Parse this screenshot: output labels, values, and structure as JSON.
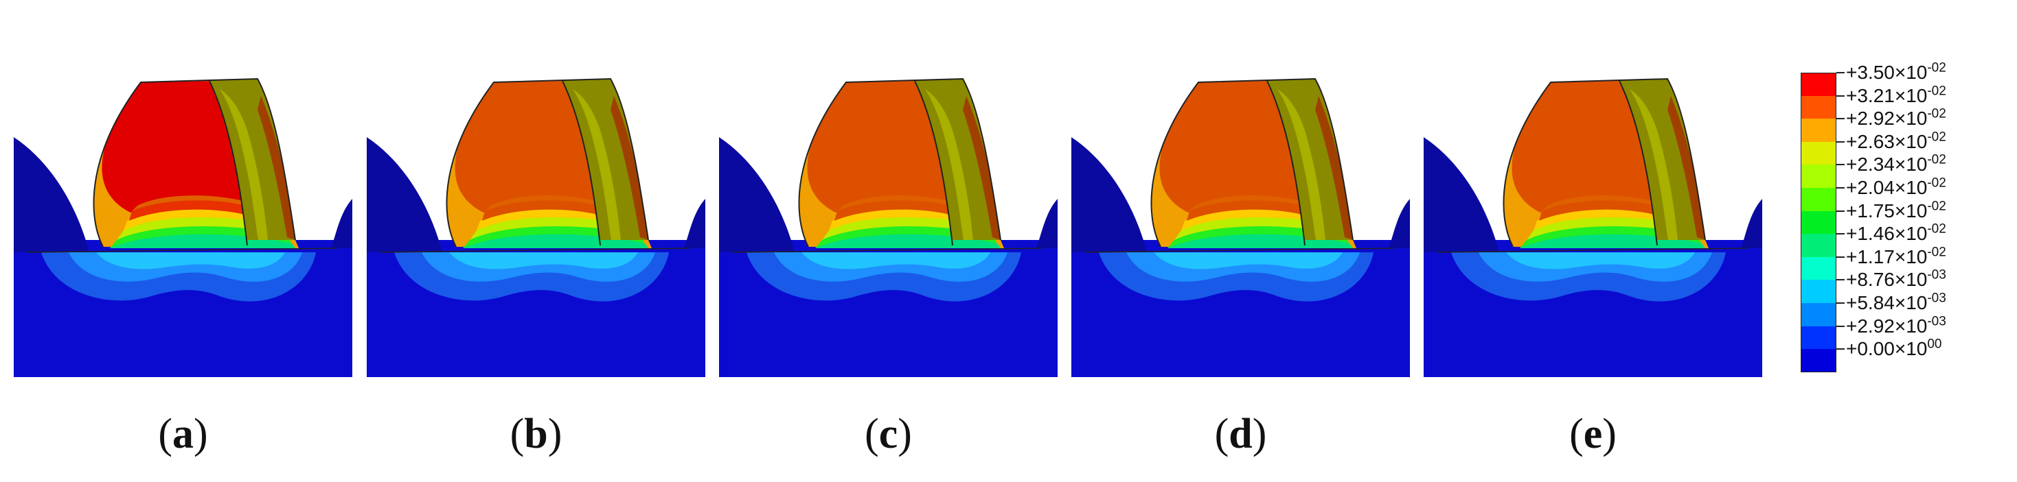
{
  "panels": [
    {
      "caption": "a",
      "tip_colors": [
        "#e00000",
        "#e00000",
        "#e83000",
        "#e06000"
      ]
    },
    {
      "caption": "b",
      "tip_colors": [
        "#dc5000",
        "#dc5000",
        "#dc5000",
        "#e06000"
      ]
    },
    {
      "caption": "c",
      "tip_colors": [
        "#dc5000",
        "#dc5000",
        "#dc5000",
        "#e06000"
      ]
    },
    {
      "caption": "d",
      "tip_colors": [
        "#dc5000",
        "#dc5000",
        "#dc5000",
        "#e06000"
      ]
    },
    {
      "caption": "e",
      "tip_colors": [
        "#dc5000",
        "#dc5000",
        "#dc5000",
        "#e06000"
      ]
    }
  ],
  "legend": {
    "colors": [
      "#ff0000",
      "#ff5500",
      "#ffaa00",
      "#ddee00",
      "#aaff00",
      "#55ff00",
      "#00ee22",
      "#00ee77",
      "#00ffcc",
      "#00ccff",
      "#0088ff",
      "#0033ff",
      "#0000dd"
    ],
    "labels": [
      {
        "mant": "+3.50",
        "exp": "-02"
      },
      {
        "mant": "+3.21",
        "exp": "-02"
      },
      {
        "mant": "+2.92",
        "exp": "-02"
      },
      {
        "mant": "+2.63",
        "exp": "-02"
      },
      {
        "mant": "+2.34",
        "exp": "-02"
      },
      {
        "mant": "+2.04",
        "exp": "-02"
      },
      {
        "mant": "+1.75",
        "exp": "-02"
      },
      {
        "mant": "+1.46",
        "exp": "-02"
      },
      {
        "mant": "+1.17",
        "exp": "-02"
      },
      {
        "mant": "+8.76",
        "exp": "-03"
      },
      {
        "mant": "+5.84",
        "exp": "-03"
      },
      {
        "mant": "+2.92",
        "exp": "-03"
      },
      {
        "mant": "+0.00",
        "exp": "00"
      }
    ],
    "times": "×10"
  }
}
